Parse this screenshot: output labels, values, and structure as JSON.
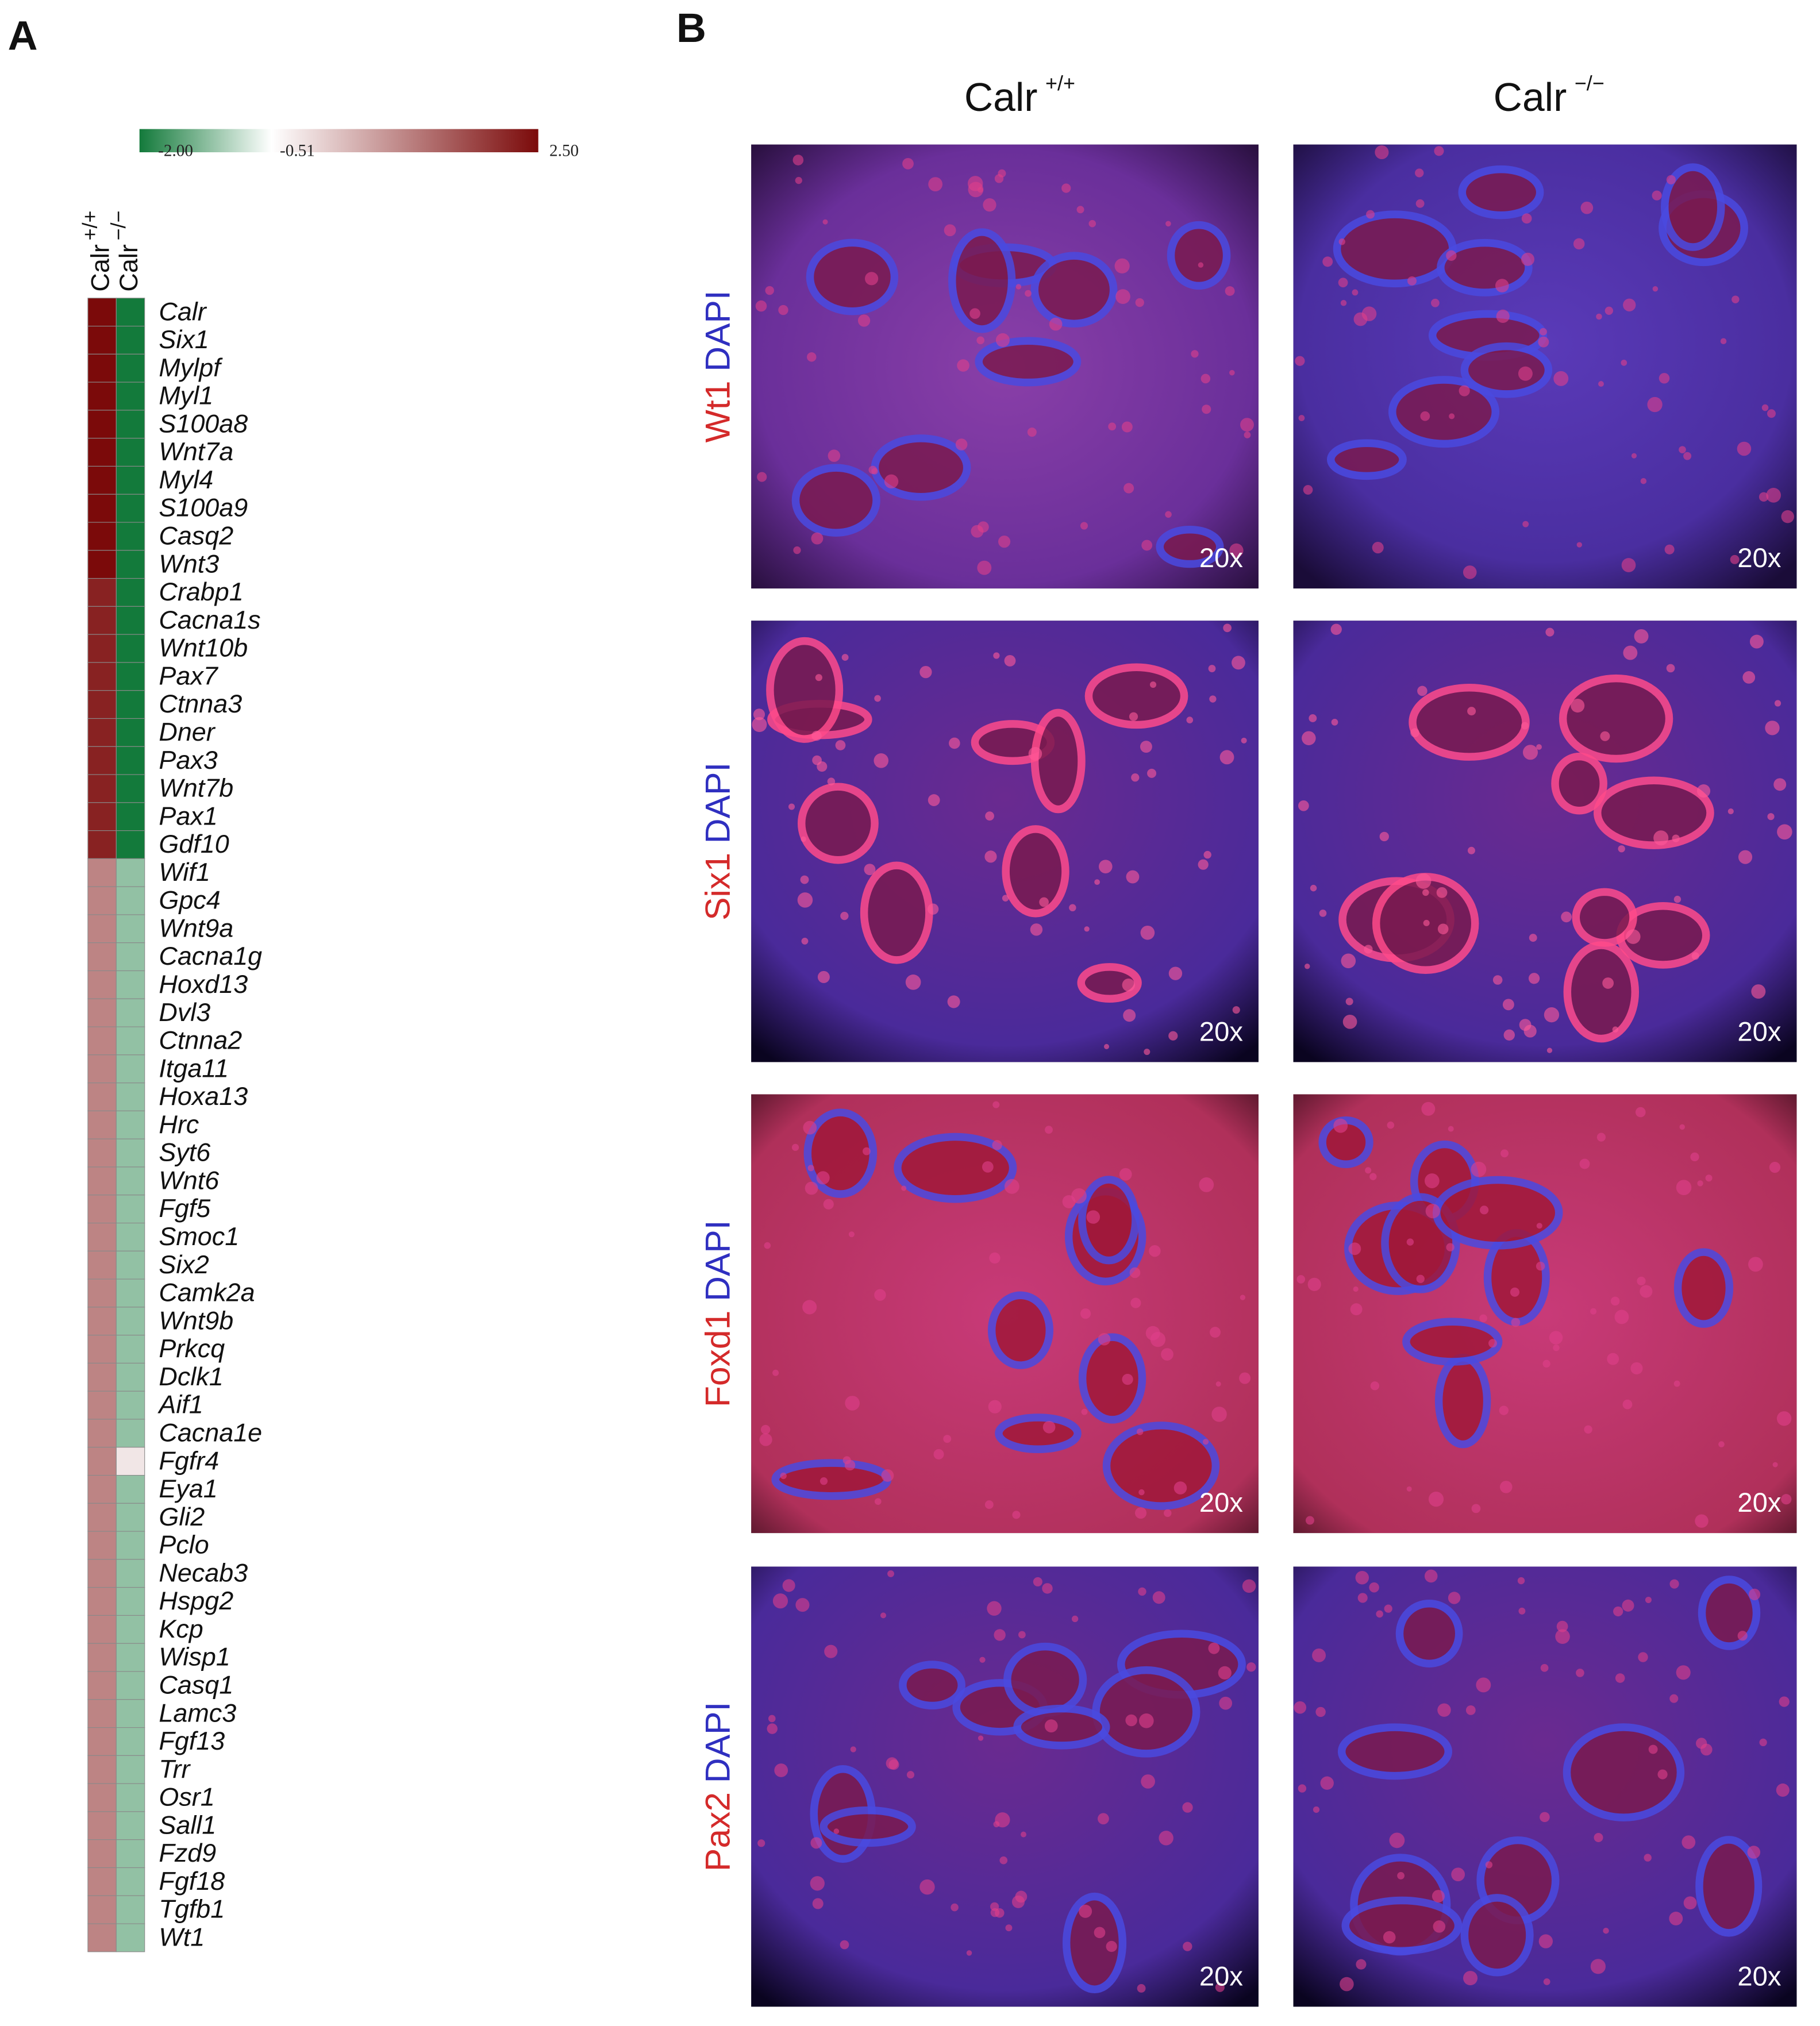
{
  "chart_data": {
    "type": "heatmap",
    "panel_label": "A",
    "colorbar": {
      "lim": [
        -2,
        2.5
      ],
      "ticks": [
        {
          "value": -2,
          "label": "-2.00"
        },
        -0.51,
        {
          "value": 2.5,
          "label": "2.50"
        }
      ],
      "colors": [
        "#137a3b",
        "#ffffff",
        "#7b0a0a"
      ]
    },
    "categories": [
      "Calr",
      "Six1",
      "Mylpf",
      "Myl1",
      "S100a8",
      "Wnt7a",
      "Myl4",
      "S100a9",
      "Casq2",
      "Wnt3",
      "Crabp1",
      "Cacna1s",
      "Wnt10b",
      "Pax7",
      "Ctnna3",
      "Dner",
      "Pax3",
      "Wnt7b",
      "Pax1",
      "Gdf10",
      "Wif1",
      "Gpc4",
      "Wnt9a",
      "Cacna1g",
      "Hoxd13",
      "Dvl3",
      "Ctnna2",
      "Itga11",
      "Hoxa13",
      "Hrc",
      "Syt6",
      "Wnt6",
      "Fgf5",
      "Smoc1",
      "Six2",
      "Camk2a",
      "Wnt9b",
      "Prkcq",
      "Dclk1",
      "Aif1",
      "Cacna1e",
      "Fgfr4",
      "Eya1",
      "Gli2",
      "Pclo",
      "Necab3",
      "Hspg2",
      "Kcp",
      "Wisp1",
      "Casq1",
      "Lamc3",
      "Fgf13",
      "Trr",
      "Osr1",
      "Sall1",
      "Fzd9",
      "Fgf18",
      "Tgfb1",
      "Wt1"
    ],
    "series": [
      {
        "name": "Calr",
        "superscript": "+/+",
        "values": [
          2.5,
          2.5,
          2.5,
          2.5,
          2.5,
          2.5,
          2.5,
          2.5,
          2.5,
          2.5,
          2.2,
          2.2,
          2.2,
          2.2,
          2.2,
          2.2,
          2.2,
          2.2,
          2.2,
          2.2,
          1.0,
          1.0,
          1.0,
          1.0,
          1.0,
          1.0,
          1.0,
          1.0,
          1.0,
          1.0,
          1.0,
          1.0,
          1.0,
          1.0,
          1.0,
          1.0,
          1.0,
          1.0,
          1.0,
          1.0,
          1.0,
          1.0,
          1.0,
          1.0,
          1.0,
          1.0,
          1.0,
          1.0,
          1.0,
          1.0,
          1.0,
          1.0,
          1.0,
          1.0,
          1.0,
          1.0,
          1.0,
          1.0,
          1.0
        ]
      },
      {
        "name": "Calr",
        "superscript": "−/−",
        "values": [
          -2,
          -2,
          -2,
          -2,
          -2,
          -2,
          -2,
          -2,
          -2,
          -2,
          -2,
          -2,
          -2,
          -2,
          -2,
          -2,
          -2,
          -2,
          -2,
          -2,
          -1.2,
          -1.2,
          -1.2,
          -1.2,
          -1.2,
          -1.2,
          -1.2,
          -1.2,
          -1.2,
          -1.2,
          -1.2,
          -1.2,
          -1.2,
          -1.2,
          -1.2,
          -1.2,
          -1.2,
          -1.2,
          -1.2,
          -1.2,
          -1.2,
          -0.2,
          -1.2,
          -1.2,
          -1.2,
          -1.2,
          -1.2,
          -1.2,
          -1.2,
          -1.2,
          -1.2,
          -1.2,
          -1.2,
          -1.2,
          -1.2,
          -1.2,
          -1.2,
          -1.2,
          -1.2
        ]
      }
    ]
  },
  "panel_b": {
    "panel_label": "B",
    "columns": [
      {
        "name": "Calr",
        "superscript": "+/+"
      },
      {
        "name": "Calr",
        "superscript": "−/−"
      }
    ],
    "rows": [
      {
        "stain": "Wt1",
        "counterstain": "DAPI",
        "magnification": [
          "20x",
          "20x"
        ]
      },
      {
        "stain": "Six1",
        "counterstain": "DAPI",
        "magnification": [
          "20x",
          "20x"
        ]
      },
      {
        "stain": "Foxd1",
        "counterstain": "DAPI",
        "magnification": [
          "20x",
          "20x"
        ]
      },
      {
        "stain": "Pax2",
        "counterstain": "DAPI",
        "magnification": [
          "20x",
          "20x"
        ]
      }
    ]
  }
}
